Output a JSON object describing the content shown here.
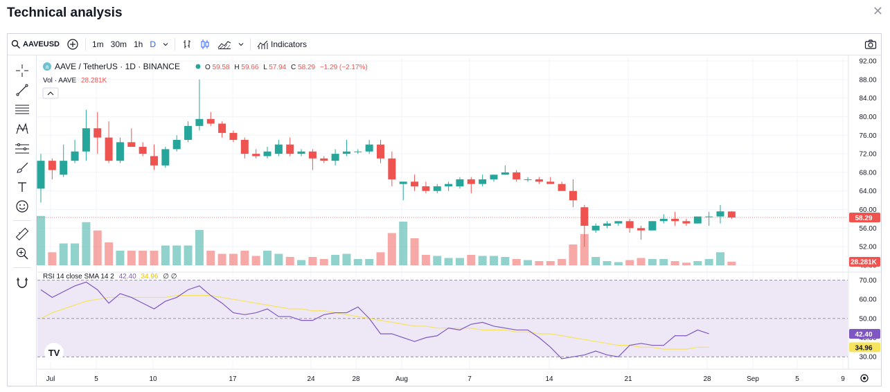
{
  "page": {
    "title": "Technical analysis"
  },
  "toolbar": {
    "symbol": "AAVEUSD",
    "intervals": [
      "1m",
      "30m",
      "1h",
      "D"
    ],
    "active_interval": "D",
    "indicators_label": "Indicators"
  },
  "legend": {
    "symbol_desc": "AAVE / TetherUS · 1D · BINANCE",
    "o_label": "O",
    "o": "59.58",
    "h_label": "H",
    "h": "59.66",
    "l_label": "L",
    "l": "57.94",
    "c_label": "C",
    "c": "58.29",
    "change": "−1.29 (−2.17%)",
    "vol_label": "Vol · AAVE",
    "vol_value": "28.281K",
    "rsi_label": "RSI 14 close SMA 14 2",
    "rsi_value": "42.40",
    "rsi_sma_value": "34.96",
    "rsi_extra": "∅ ∅"
  },
  "colors": {
    "up": "#26a69a",
    "down": "#ef5350",
    "rsi_line": "#7e57c2",
    "rsi_sma": "#f7e45e",
    "rsi_band": "#ede7f6"
  },
  "chart_data": {
    "type": "candlestick",
    "price_axis": {
      "min": 48,
      "max": 92,
      "ticks": [
        "92.00",
        "88.00",
        "84.00",
        "80.00",
        "76.00",
        "72.00",
        "68.00",
        "64.00",
        "60.00",
        "56.00",
        "52.00",
        "48.00"
      ]
    },
    "last_price_label": "58.29",
    "last_volume_label": "28.281K",
    "x_tick_labels": [
      "Jul",
      "5",
      "10",
      "17",
      "24",
      "28",
      "Aug",
      "7",
      "14",
      "21",
      "28",
      "Sep",
      "5",
      "9"
    ],
    "candles": [
      {
        "o": 64.5,
        "h": 72,
        "l": 61.5,
        "c": 70.5
      },
      {
        "o": 70.5,
        "h": 71,
        "l": 66.5,
        "c": 68.5
      },
      {
        "o": 67.5,
        "h": 74,
        "l": 67,
        "c": 70.5
      },
      {
        "o": 70.5,
        "h": 75,
        "l": 70,
        "c": 72.5
      },
      {
        "o": 72.5,
        "h": 81.5,
        "l": 70.5,
        "c": 77.5
      },
      {
        "o": 77.5,
        "h": 81,
        "l": 72,
        "c": 75.5
      },
      {
        "o": 75.5,
        "h": 79,
        "l": 70,
        "c": 70.5
      },
      {
        "o": 70.5,
        "h": 75.5,
        "l": 70,
        "c": 74.5
      },
      {
        "o": 74.5,
        "h": 77.5,
        "l": 73.5,
        "c": 73.5
      },
      {
        "o": 73.5,
        "h": 74.5,
        "l": 71.5,
        "c": 72
      },
      {
        "o": 71.5,
        "h": 74,
        "l": 68.5,
        "c": 69.5
      },
      {
        "o": 69.5,
        "h": 73.5,
        "l": 69,
        "c": 73
      },
      {
        "o": 73,
        "h": 76,
        "l": 72.5,
        "c": 75
      },
      {
        "o": 75,
        "h": 79,
        "l": 74.5,
        "c": 78
      },
      {
        "o": 78,
        "h": 88,
        "l": 77,
        "c": 79.5
      },
      {
        "o": 79.5,
        "h": 81,
        "l": 78,
        "c": 78.5
      },
      {
        "o": 78.5,
        "h": 79,
        "l": 75.5,
        "c": 76.5
      },
      {
        "o": 76.5,
        "h": 77,
        "l": 74.5,
        "c": 75
      },
      {
        "o": 75,
        "h": 75.5,
        "l": 71,
        "c": 72
      },
      {
        "o": 72,
        "h": 73,
        "l": 71,
        "c": 71.5
      },
      {
        "o": 71.5,
        "h": 73.5,
        "l": 71,
        "c": 72.5
      },
      {
        "o": 72,
        "h": 75,
        "l": 71.5,
        "c": 74
      },
      {
        "o": 74,
        "h": 75.5,
        "l": 71.5,
        "c": 72
      },
      {
        "o": 72,
        "h": 73,
        "l": 71.5,
        "c": 72.5
      },
      {
        "o": 72.5,
        "h": 73,
        "l": 68.5,
        "c": 71
      },
      {
        "o": 71,
        "h": 71.5,
        "l": 70,
        "c": 70.5
      },
      {
        "o": 70.5,
        "h": 73,
        "l": 69.5,
        "c": 72
      },
      {
        "o": 72,
        "h": 75,
        "l": 71.5,
        "c": 72.5
      },
      {
        "o": 72.5,
        "h": 73,
        "l": 72,
        "c": 72.5
      },
      {
        "o": 72.5,
        "h": 75,
        "l": 72,
        "c": 74
      },
      {
        "o": 74,
        "h": 75,
        "l": 70,
        "c": 71
      },
      {
        "o": 71,
        "h": 72.5,
        "l": 65,
        "c": 66.5
      },
      {
        "o": 65.5,
        "h": 66,
        "l": 62,
        "c": 66
      },
      {
        "o": 66,
        "h": 67.5,
        "l": 64,
        "c": 65
      },
      {
        "o": 65,
        "h": 66,
        "l": 63.5,
        "c": 64
      },
      {
        "o": 64,
        "h": 65.5,
        "l": 63.5,
        "c": 65
      },
      {
        "o": 65,
        "h": 66,
        "l": 64,
        "c": 65.5
      },
      {
        "o": 65,
        "h": 67,
        "l": 64.5,
        "c": 66.5
      },
      {
        "o": 66.5,
        "h": 67,
        "l": 63.5,
        "c": 65.5
      },
      {
        "o": 65.5,
        "h": 67.5,
        "l": 65,
        "c": 66.5
      },
      {
        "o": 66.5,
        "h": 67.5,
        "l": 66,
        "c": 67.5
      },
      {
        "o": 67.5,
        "h": 69.5,
        "l": 67.5,
        "c": 68
      },
      {
        "o": 68,
        "h": 68.5,
        "l": 66,
        "c": 66.5
      },
      {
        "o": 66.5,
        "h": 67,
        "l": 66,
        "c": 66.5
      },
      {
        "o": 66.5,
        "h": 67,
        "l": 65.5,
        "c": 66
      },
      {
        "o": 66,
        "h": 67,
        "l": 65.5,
        "c": 65.5
      },
      {
        "o": 65.5,
        "h": 66,
        "l": 64,
        "c": 64
      },
      {
        "o": 64,
        "h": 66.5,
        "l": 60.5,
        "c": 62
      },
      {
        "o": 60.5,
        "h": 61,
        "l": 52,
        "c": 56.5
      },
      {
        "o": 55.5,
        "h": 57,
        "l": 55,
        "c": 56.5
      },
      {
        "o": 56.5,
        "h": 57.5,
        "l": 56,
        "c": 57
      },
      {
        "o": 57,
        "h": 57.5,
        "l": 56.5,
        "c": 57.5
      },
      {
        "o": 57.5,
        "h": 58,
        "l": 55,
        "c": 56
      },
      {
        "o": 56,
        "h": 56.5,
        "l": 53.5,
        "c": 55.5
      },
      {
        "o": 55.5,
        "h": 57.5,
        "l": 55.5,
        "c": 57.5
      },
      {
        "o": 57.5,
        "h": 59,
        "l": 57,
        "c": 58
      },
      {
        "o": 58,
        "h": 59.5,
        "l": 56.5,
        "c": 57.5
      },
      {
        "o": 57.5,
        "h": 58,
        "l": 56.5,
        "c": 57
      },
      {
        "o": 57,
        "h": 58.5,
        "l": 57,
        "c": 58.5
      },
      {
        "o": 58.5,
        "h": 59.5,
        "l": 56.5,
        "c": 58.5
      },
      {
        "o": 58.5,
        "h": 61,
        "l": 57,
        "c": 59.6
      },
      {
        "o": 59.58,
        "h": 59.66,
        "l": 57.94,
        "c": 58.29
      }
    ],
    "volumes": [
      0.95,
      0.25,
      0.42,
      0.42,
      0.83,
      0.67,
      0.44,
      0.28,
      0.28,
      0.28,
      0.28,
      0.38,
      0.38,
      0.38,
      0.68,
      0.28,
      0.22,
      0.22,
      0.28,
      0.18,
      0.28,
      0.22,
      0.16,
      0.1,
      0.16,
      0.12,
      0.2,
      0.22,
      0.12,
      0.12,
      0.25,
      0.62,
      0.84,
      0.52,
      0.2,
      0.18,
      0.14,
      0.14,
      0.2,
      0.18,
      0.18,
      0.16,
      0.12,
      0.1,
      0.08,
      0.08,
      0.12,
      0.4,
      0.6,
      0.16,
      0.08,
      0.06,
      0.1,
      0.14,
      0.12,
      0.12,
      0.08,
      0.05,
      0.08,
      0.12,
      0.25,
      0.07
    ],
    "rsi": {
      "axis": {
        "min": 25,
        "max": 72,
        "ticks": [
          "70.00",
          "60.00",
          "50.00",
          "40.00",
          "30.00"
        ],
        "bands": [
          70,
          50,
          30
        ]
      },
      "rsi": [
        65,
        61,
        64,
        67,
        69,
        65,
        58,
        63,
        61,
        58,
        55,
        59,
        61,
        65,
        67,
        62,
        58,
        53,
        52,
        53,
        55,
        51,
        51,
        49,
        49,
        52,
        53,
        53,
        56,
        50,
        42,
        42,
        40,
        38,
        40,
        41,
        45,
        44,
        47,
        48,
        46,
        45,
        44,
        44,
        40,
        35,
        29,
        30,
        31,
        33,
        31,
        30,
        36,
        37,
        36,
        36,
        41,
        41,
        44,
        42
      ],
      "sma": [
        50,
        53,
        55,
        57,
        59,
        60,
        61,
        61,
        61,
        61,
        61,
        61,
        62,
        62,
        62,
        62,
        61,
        60,
        59,
        58,
        57,
        56,
        55,
        55,
        54,
        54,
        53,
        52,
        51,
        50,
        49,
        48,
        47,
        46,
        46,
        45,
        45,
        45,
        45,
        44,
        44,
        44,
        43,
        43,
        42,
        42,
        41,
        40,
        39,
        38,
        37,
        36,
        36,
        35,
        35,
        34,
        34,
        34,
        35,
        35
      ]
    }
  }
}
